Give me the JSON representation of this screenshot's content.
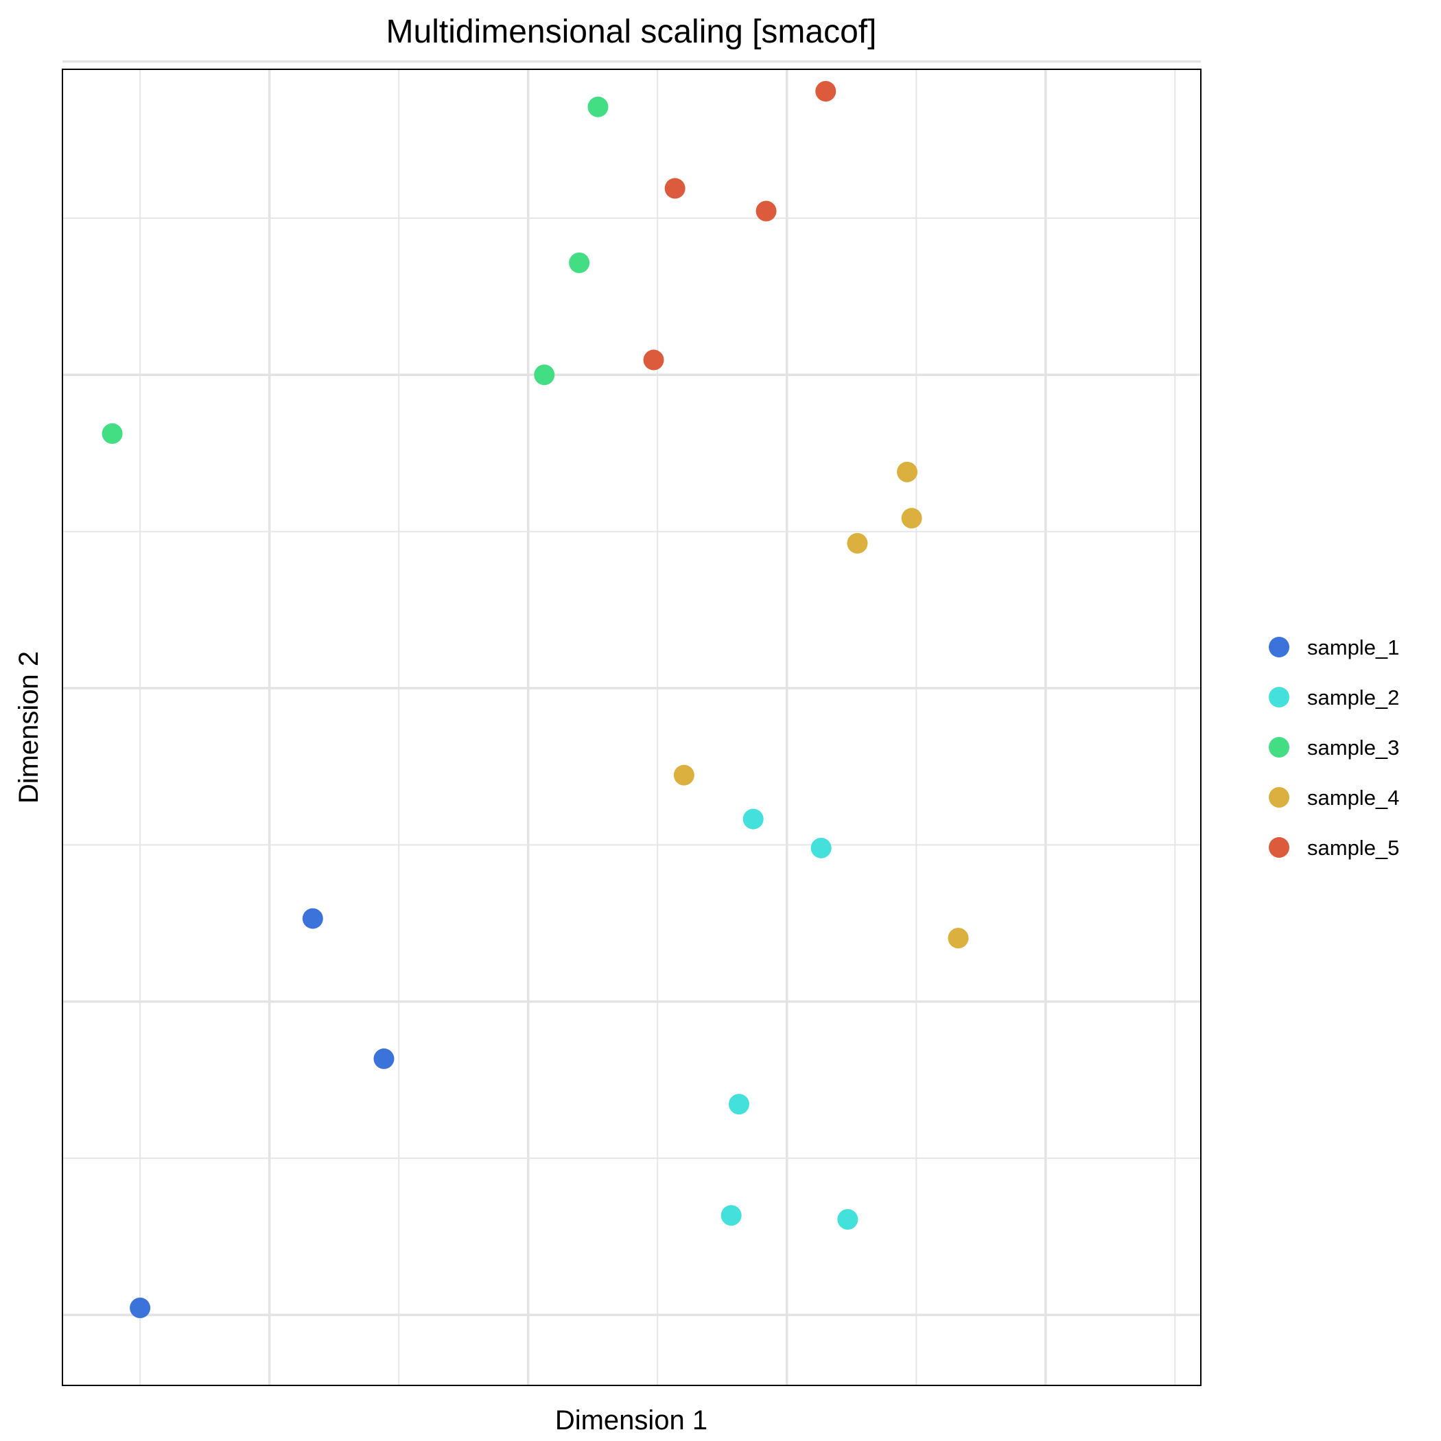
{
  "chart_data": {
    "type": "scatter",
    "title": "Multidimensional scaling [smacof]",
    "xlabel": "Dimension 1",
    "ylabel": "Dimension 2",
    "grid": true,
    "tick_labels_shown": false,
    "legend_position": "right",
    "xlim": [
      -0.16,
      1.6
    ],
    "ylim": [
      -0.09,
      1.59
    ],
    "series": [
      {
        "name": "sample_1",
        "color": "#3b73db",
        "points": [
          {
            "x": -0.04,
            "y": 0.009
          },
          {
            "x": 0.227,
            "y": 0.506
          },
          {
            "x": 0.337,
            "y": 0.327
          }
        ]
      },
      {
        "name": "sample_2",
        "color": "#43e0dc",
        "points": [
          {
            "x": 0.908,
            "y": 0.633
          },
          {
            "x": 1.013,
            "y": 0.596
          },
          {
            "x": 0.886,
            "y": 0.269
          },
          {
            "x": 0.874,
            "y": 0.127
          },
          {
            "x": 1.054,
            "y": 0.122
          }
        ]
      },
      {
        "name": "sample_3",
        "color": "#43dd84",
        "points": [
          {
            "x": -0.083,
            "y": 1.125
          },
          {
            "x": 0.585,
            "y": 1.2
          },
          {
            "x": 0.639,
            "y": 1.343
          },
          {
            "x": 0.668,
            "y": 1.542
          }
        ]
      },
      {
        "name": "sample_4",
        "color": "#dcb03e",
        "points": [
          {
            "x": 1.069,
            "y": 0.985
          },
          {
            "x": 1.146,
            "y": 1.076
          },
          {
            "x": 1.153,
            "y": 1.017
          },
          {
            "x": 0.801,
            "y": 0.689
          },
          {
            "x": 1.225,
            "y": 0.481
          }
        ]
      },
      {
        "name": "sample_5",
        "color": "#db5b3c",
        "points": [
          {
            "x": 1.02,
            "y": 1.562
          },
          {
            "x": 0.787,
            "y": 1.438
          },
          {
            "x": 0.928,
            "y": 1.409
          },
          {
            "x": 0.754,
            "y": 1.219
          }
        ]
      }
    ]
  }
}
